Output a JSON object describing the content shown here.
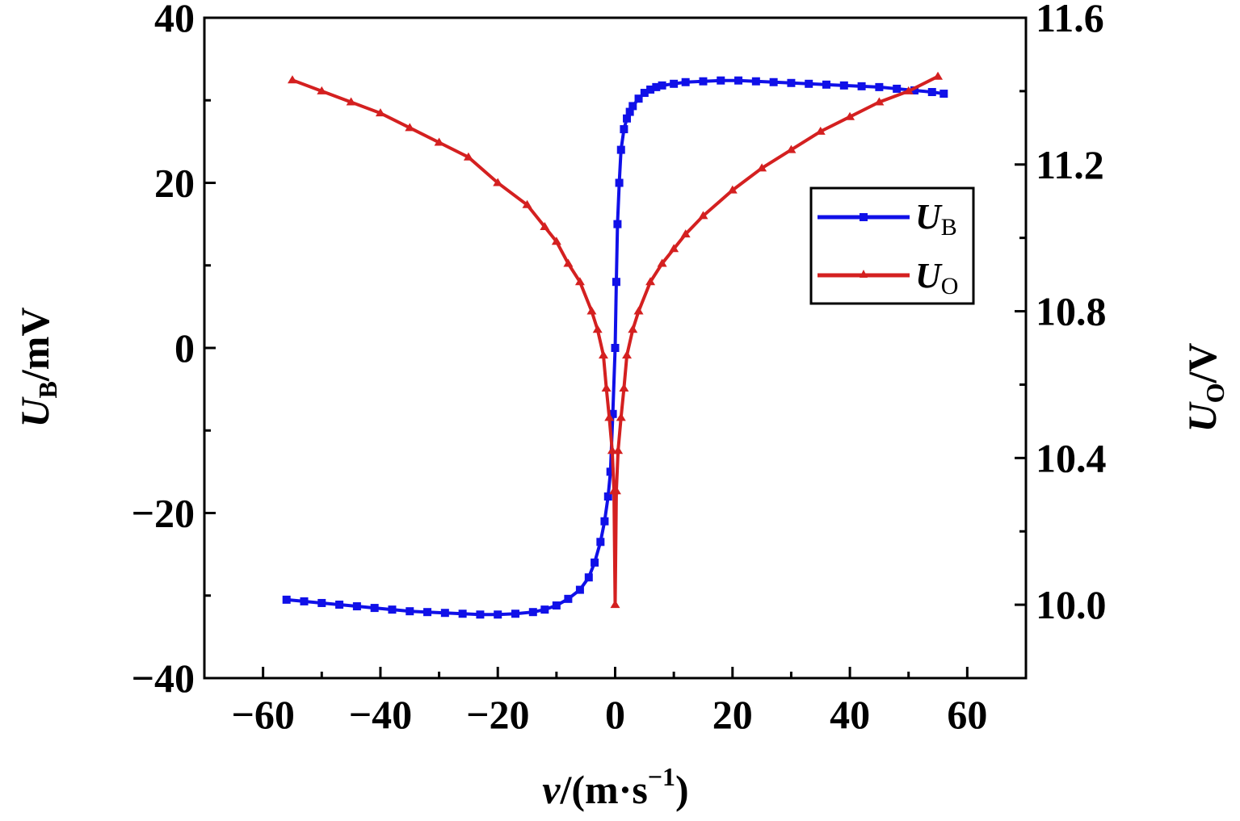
{
  "chart_data": {
    "type": "line",
    "xlabel": {
      "main": "v",
      "unit": "/(m·s",
      "sup": "−1",
      "close": ")"
    },
    "ylabel_left": {
      "main": "U",
      "sub": "B",
      "unit": "/mV"
    },
    "ylabel_right": {
      "main": "U",
      "sub": "O",
      "unit": "/V"
    },
    "xlim": [
      -70,
      70
    ],
    "ylim_left": [
      -40,
      40
    ],
    "ylim_right": [
      9.8,
      11.6
    ],
    "xticks": [
      -60,
      -40,
      -20,
      0,
      20,
      40,
      60
    ],
    "xtick_labels": [
      "−60",
      "−40",
      "−20",
      "0",
      "20",
      "40",
      "60"
    ],
    "yticks_left": [
      -40,
      -20,
      0,
      20,
      40
    ],
    "ytick_labels_left": [
      "−40",
      "−20",
      "0",
      "20",
      "40"
    ],
    "yticks_right": [
      10.0,
      10.4,
      10.8,
      11.2,
      11.6
    ],
    "ytick_labels_right": [
      "10.0",
      "10.4",
      "10.8",
      "11.2",
      "11.6"
    ],
    "grid": false,
    "legend_placement": "right",
    "series": [
      {
        "name": "U_B",
        "label_main": "U",
        "label_sub": "B",
        "axis": "left",
        "color": "#1010e8",
        "marker": "square",
        "x": [
          -56,
          -53,
          -50,
          -47,
          -44,
          -41,
          -38,
          -35,
          -32,
          -29,
          -26,
          -23,
          -20,
          -17,
          -14,
          -12,
          -10,
          -8,
          -6,
          -4.5,
          -3.5,
          -2.5,
          -1.8,
          -1.2,
          -0.8,
          -0.4,
          0,
          0.2,
          0.4,
          0.7,
          1,
          1.5,
          2,
          2.5,
          3,
          4,
          5,
          6,
          7,
          8,
          10,
          12,
          15,
          18,
          21,
          24,
          27,
          30,
          33,
          36,
          39,
          42,
          45,
          48,
          51,
          54,
          56
        ],
        "y": [
          -30.5,
          -30.7,
          -30.9,
          -31.1,
          -31.3,
          -31.5,
          -31.7,
          -31.9,
          -32.0,
          -32.1,
          -32.2,
          -32.3,
          -32.3,
          -32.2,
          -32.0,
          -31.7,
          -31.2,
          -30.4,
          -29.3,
          -27.8,
          -26,
          -23.5,
          -21,
          -18,
          -15,
          -8,
          0,
          8,
          15,
          20,
          24,
          26.5,
          27.8,
          28.6,
          29.3,
          30.2,
          30.9,
          31.3,
          31.6,
          31.8,
          32.0,
          32.2,
          32.3,
          32.4,
          32.4,
          32.3,
          32.2,
          32.1,
          32.0,
          31.9,
          31.8,
          31.7,
          31.6,
          31.4,
          31.2,
          31.0,
          30.8
        ]
      },
      {
        "name": "U_O",
        "label_main": "U",
        "label_sub": "O",
        "axis": "right",
        "color": "#d42020",
        "marker": "triangle",
        "x": [
          -55,
          -50,
          -45,
          -40,
          -35,
          -30,
          -25,
          -20,
          -15,
          -12,
          -10,
          -8,
          -6,
          -4,
          -3,
          -2,
          -1.5,
          -1,
          -0.5,
          -0.2,
          0,
          0.2,
          0.5,
          1,
          1.5,
          2,
          3,
          4,
          6,
          8,
          10,
          12,
          15,
          20,
          25,
          30,
          35,
          40,
          45,
          50,
          55
        ],
        "y": [
          11.43,
          11.4,
          11.37,
          11.34,
          11.3,
          11.26,
          11.22,
          11.15,
          11.09,
          11.03,
          10.99,
          10.93,
          10.88,
          10.8,
          10.75,
          10.68,
          10.59,
          10.51,
          10.42,
          10.31,
          10.0,
          10.31,
          10.42,
          10.51,
          10.59,
          10.68,
          10.75,
          10.8,
          10.88,
          10.93,
          10.97,
          11.01,
          11.06,
          11.13,
          11.19,
          11.24,
          11.29,
          11.33,
          11.37,
          11.4,
          11.44
        ]
      }
    ]
  }
}
